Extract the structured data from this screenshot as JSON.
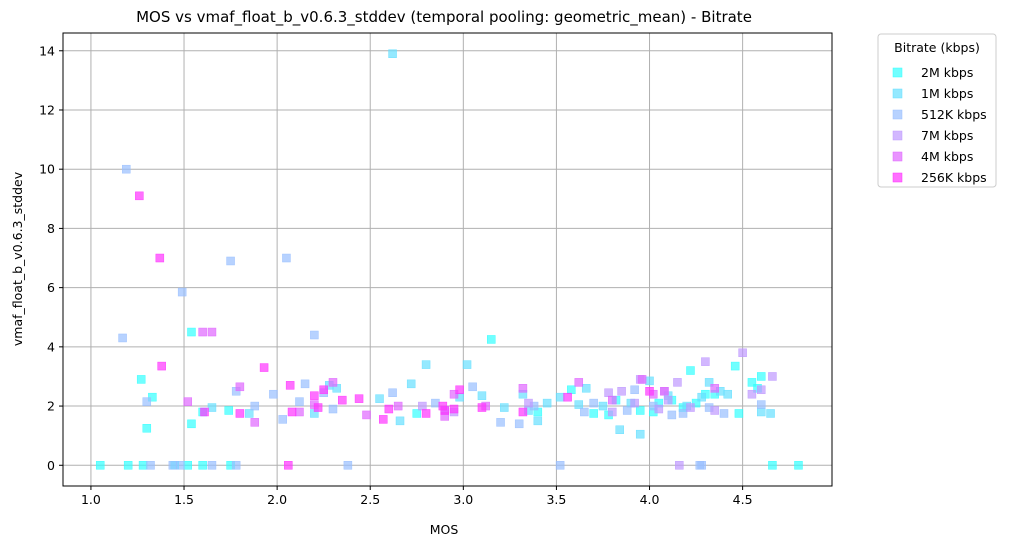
{
  "chart_data": {
    "type": "scatter",
    "title": "MOS vs vmaf_float_b_v0.6.3_stddev (temporal pooling: geometric_mean) - Bitrate",
    "xlabel": "MOS",
    "ylabel": "vmaf_float_b_v0.6.3_stddev",
    "xlim": [
      0.85,
      4.98
    ],
    "ylim": [
      -0.7,
      14.6
    ],
    "xticks": [
      1.0,
      1.5,
      2.0,
      2.5,
      3.0,
      3.5,
      4.0,
      4.5
    ],
    "xtick_labels": [
      "1.0",
      "1.5",
      "2.0",
      "2.5",
      "3.0",
      "3.5",
      "4.0",
      "4.5"
    ],
    "yticks": [
      0,
      2,
      4,
      6,
      8,
      10,
      12,
      14
    ],
    "ytick_labels": [
      "0",
      "2",
      "4",
      "6",
      "8",
      "10",
      "12",
      "14"
    ],
    "grid": true,
    "legend": {
      "title": "Bitrate (kbps)",
      "placement": "outside-top-right"
    },
    "marker": "square",
    "series": [
      {
        "name": "2M kbps",
        "color": "#33ffff",
        "points": [
          [
            1.05,
            0
          ],
          [
            1.2,
            0
          ],
          [
            1.28,
            0
          ],
          [
            1.45,
            0
          ],
          [
            1.52,
            0
          ],
          [
            1.6,
            0
          ],
          [
            1.75,
            0
          ],
          [
            4.66,
            0
          ],
          [
            4.8,
            0
          ],
          [
            1.27,
            2.9
          ],
          [
            1.3,
            1.25
          ],
          [
            1.33,
            2.3
          ],
          [
            1.54,
            4.5
          ],
          [
            1.54,
            1.4
          ],
          [
            1.6,
            1.8
          ],
          [
            1.74,
            1.85
          ],
          [
            2.75,
            1.75
          ],
          [
            3.15,
            4.25
          ],
          [
            3.4,
            1.8
          ],
          [
            3.58,
            2.55
          ],
          [
            3.7,
            1.75
          ],
          [
            3.78,
            1.7
          ],
          [
            3.82,
            2.2
          ],
          [
            3.95,
            1.85
          ],
          [
            4.02,
            1.8
          ],
          [
            4.05,
            2.1
          ],
          [
            4.12,
            2.2
          ],
          [
            4.18,
            1.95
          ],
          [
            4.22,
            3.2
          ],
          [
            4.25,
            2.1
          ],
          [
            4.3,
            2.4
          ],
          [
            4.35,
            2.4
          ],
          [
            4.46,
            3.35
          ],
          [
            4.48,
            1.75
          ],
          [
            4.55,
            2.8
          ],
          [
            4.58,
            2.6
          ],
          [
            4.6,
            3.0
          ]
        ]
      },
      {
        "name": "1M kbps",
        "color": "#66dfff",
        "points": [
          [
            1.65,
            1.95
          ],
          [
            1.85,
            1.75
          ],
          [
            2.2,
            1.75
          ],
          [
            2.28,
            2.7
          ],
          [
            2.32,
            2.6
          ],
          [
            2.55,
            2.25
          ],
          [
            2.66,
            1.5
          ],
          [
            2.72,
            2.75
          ],
          [
            2.8,
            3.4
          ],
          [
            2.98,
            2.3
          ],
          [
            3.02,
            3.4
          ],
          [
            3.1,
            2.35
          ],
          [
            3.22,
            1.95
          ],
          [
            3.32,
            2.4
          ],
          [
            3.35,
            1.85
          ],
          [
            3.4,
            1.5
          ],
          [
            3.45,
            2.1
          ],
          [
            3.52,
            2.3
          ],
          [
            3.62,
            2.05
          ],
          [
            3.66,
            2.6
          ],
          [
            3.75,
            2.0
          ],
          [
            3.84,
            1.2
          ],
          [
            3.9,
            2.1
          ],
          [
            3.95,
            1.05
          ],
          [
            4.0,
            2.85
          ],
          [
            4.1,
            2.35
          ],
          [
            4.2,
            2.0
          ],
          [
            4.28,
            2.3
          ],
          [
            4.32,
            2.8
          ],
          [
            4.38,
            2.5
          ],
          [
            4.42,
            2.4
          ],
          [
            4.6,
            1.8
          ],
          [
            4.65,
            1.75
          ],
          [
            2.62,
            13.9
          ]
        ]
      },
      {
        "name": "512K kbps",
        "color": "#99bfff",
        "points": [
          [
            1.17,
            4.3
          ],
          [
            1.19,
            10.0
          ],
          [
            1.3,
            2.15
          ],
          [
            1.32,
            0
          ],
          [
            1.44,
            0
          ],
          [
            1.48,
            0
          ],
          [
            1.49,
            5.85
          ],
          [
            1.75,
            6.9
          ],
          [
            1.78,
            0
          ],
          [
            1.65,
            0
          ],
          [
            1.78,
            2.5
          ],
          [
            1.88,
            2.0
          ],
          [
            1.98,
            2.4
          ],
          [
            2.03,
            1.55
          ],
          [
            2.05,
            7.0
          ],
          [
            2.12,
            2.15
          ],
          [
            2.15,
            2.75
          ],
          [
            2.2,
            4.4
          ],
          [
            2.25,
            2.45
          ],
          [
            2.3,
            1.9
          ],
          [
            2.38,
            0
          ],
          [
            2.62,
            2.45
          ],
          [
            2.85,
            2.1
          ],
          [
            2.9,
            1.85
          ],
          [
            3.05,
            2.65
          ],
          [
            3.2,
            1.45
          ],
          [
            3.3,
            1.4
          ],
          [
            3.38,
            2.0
          ],
          [
            3.52,
            0
          ],
          [
            3.65,
            1.8
          ],
          [
            3.7,
            2.1
          ],
          [
            3.88,
            1.85
          ],
          [
            3.92,
            2.55
          ],
          [
            4.02,
            2.0
          ],
          [
            4.12,
            1.7
          ],
          [
            4.18,
            1.75
          ],
          [
            4.28,
            0
          ],
          [
            4.27,
            0
          ],
          [
            4.32,
            1.95
          ],
          [
            4.4,
            1.75
          ],
          [
            4.6,
            2.05
          ]
        ]
      },
      {
        "name": "7M kbps",
        "color": "#bf99ff",
        "points": [
          [
            2.78,
            2.0
          ],
          [
            2.95,
            1.8
          ],
          [
            3.35,
            2.1
          ],
          [
            3.78,
            2.45
          ],
          [
            3.8,
            1.8
          ],
          [
            3.85,
            2.5
          ],
          [
            3.92,
            2.1
          ],
          [
            3.95,
            2.9
          ],
          [
            4.05,
            1.9
          ],
          [
            4.08,
            2.5
          ],
          [
            4.1,
            2.2
          ],
          [
            4.15,
            2.8
          ],
          [
            4.16,
            0
          ],
          [
            4.22,
            1.95
          ],
          [
            4.3,
            3.5
          ],
          [
            4.35,
            1.85
          ],
          [
            4.5,
            3.8
          ],
          [
            4.55,
            2.4
          ],
          [
            4.6,
            2.55
          ],
          [
            4.66,
            3.0
          ]
        ]
      },
      {
        "name": "4M kbps",
        "color": "#e066ff",
        "points": [
          [
            1.52,
            2.15
          ],
          [
            1.6,
            4.5
          ],
          [
            1.65,
            4.5
          ],
          [
            1.8,
            2.65
          ],
          [
            1.88,
            1.45
          ],
          [
            2.12,
            1.8
          ],
          [
            2.2,
            2.05
          ],
          [
            2.3,
            2.8
          ],
          [
            2.48,
            1.7
          ],
          [
            2.65,
            2.0
          ],
          [
            2.9,
            1.65
          ],
          [
            2.95,
            2.4
          ],
          [
            3.12,
            2.0
          ],
          [
            3.32,
            2.6
          ],
          [
            3.62,
            2.8
          ],
          [
            3.8,
            2.2
          ],
          [
            3.96,
            2.9
          ],
          [
            4.02,
            2.4
          ],
          [
            4.08,
            2.5
          ],
          [
            4.35,
            2.6
          ]
        ]
      },
      {
        "name": "256K kbps",
        "color": "#ff33ff",
        "points": [
          [
            1.26,
            9.1
          ],
          [
            1.37,
            7.0
          ],
          [
            1.38,
            3.35
          ],
          [
            1.61,
            1.8
          ],
          [
            1.8,
            1.75
          ],
          [
            1.93,
            3.3
          ],
          [
            2.07,
            2.7
          ],
          [
            2.08,
            1.8
          ],
          [
            2.06,
            0
          ],
          [
            2.2,
            2.35
          ],
          [
            2.22,
            1.95
          ],
          [
            2.25,
            2.55
          ],
          [
            2.35,
            2.2
          ],
          [
            2.44,
            2.25
          ],
          [
            2.57,
            1.55
          ],
          [
            2.6,
            1.9
          ],
          [
            2.8,
            1.75
          ],
          [
            2.89,
            2.0
          ],
          [
            2.9,
            1.85
          ],
          [
            2.95,
            1.9
          ],
          [
            2.98,
            2.55
          ],
          [
            3.1,
            1.95
          ],
          [
            3.32,
            1.8
          ],
          [
            3.56,
            2.3
          ],
          [
            4.0,
            2.5
          ]
        ]
      }
    ]
  }
}
